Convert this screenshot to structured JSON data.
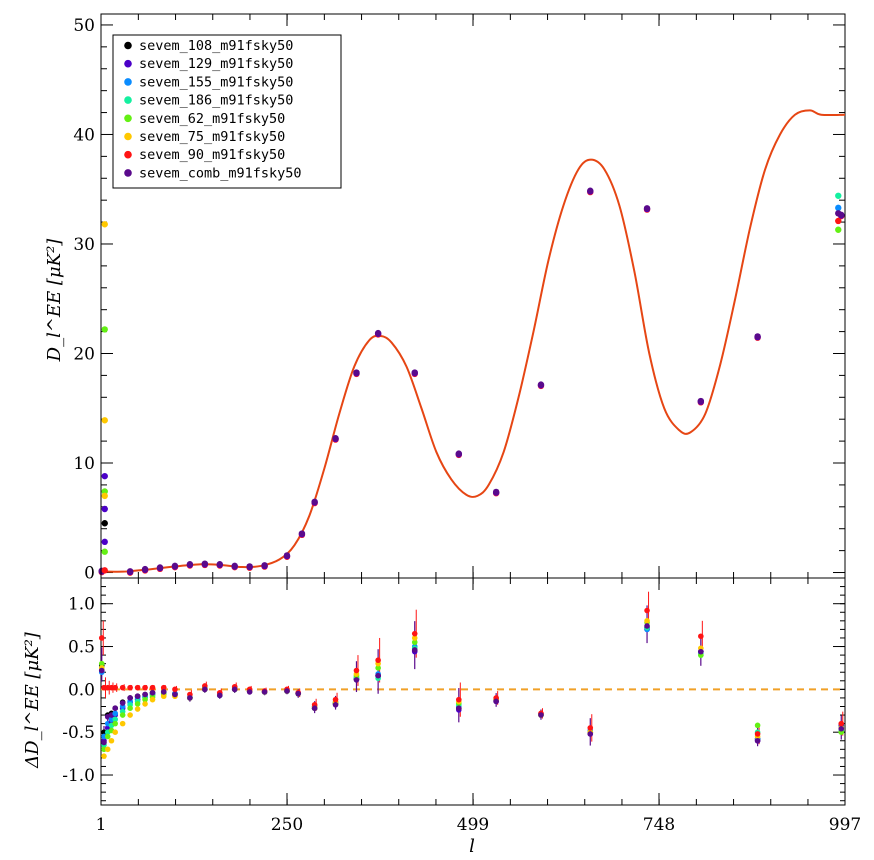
{
  "chart_data": [
    {
      "type": "scatter",
      "panel": "main",
      "xlabel": "l",
      "ylabel": "D_l^EE [μK²]",
      "xlim": [
        1,
        997
      ],
      "ylim": [
        -0.5,
        51
      ],
      "xticks": [
        "1",
        "250",
        "499",
        "748",
        "997"
      ],
      "yticks": [
        0,
        10,
        20,
        30,
        40,
        50
      ],
      "legend_position": "top-left",
      "series_colors": [
        "#000000",
        "#4b00c8",
        "#0a8cff",
        "#14f0a0",
        "#64f014",
        "#ffc800",
        "#ff1414",
        "#5a0a8c"
      ],
      "series_names": [
        "sevem_108_m91fsky50",
        "sevem_129_m91fsky50",
        "sevem_155_m91fsky50",
        "sevem_186_m91fsky50",
        "sevem_62_m91fsky50",
        "sevem_75_m91fsky50",
        "sevem_90_m91fsky50",
        "sevem_comb_m91fsky50"
      ],
      "model_color": "#e64614",
      "model_curve": [
        [
          2,
          0.1
        ],
        [
          30,
          0.08
        ],
        [
          60,
          0.25
        ],
        [
          100,
          0.55
        ],
        [
          135,
          0.75
        ],
        [
          160,
          0.7
        ],
        [
          190,
          0.5
        ],
        [
          215,
          0.6
        ],
        [
          240,
          1.2
        ],
        [
          260,
          2.5
        ],
        [
          280,
          5.2
        ],
        [
          300,
          9.5
        ],
        [
          320,
          14.5
        ],
        [
          340,
          18.8
        ],
        [
          360,
          21.2
        ],
        [
          375,
          21.6
        ],
        [
          390,
          21.0
        ],
        [
          410,
          18.8
        ],
        [
          430,
          15.0
        ],
        [
          450,
          11.0
        ],
        [
          470,
          8.5
        ],
        [
          490,
          7.1
        ],
        [
          505,
          7.0
        ],
        [
          520,
          8.0
        ],
        [
          540,
          11.0
        ],
        [
          560,
          16.0
        ],
        [
          580,
          22.0
        ],
        [
          600,
          28.5
        ],
        [
          620,
          33.5
        ],
        [
          640,
          36.8
        ],
        [
          657,
          37.7
        ],
        [
          675,
          36.8
        ],
        [
          695,
          33.5
        ],
        [
          715,
          27.5
        ],
        [
          735,
          20.0
        ],
        [
          755,
          15.0
        ],
        [
          775,
          13.0
        ],
        [
          790,
          12.8
        ],
        [
          810,
          14.5
        ],
        [
          830,
          19.0
        ],
        [
          850,
          25.0
        ],
        [
          870,
          31.5
        ],
        [
          890,
          36.8
        ],
        [
          910,
          40.0
        ],
        [
          930,
          41.8
        ],
        [
          950,
          42.2
        ],
        [
          965,
          41.8
        ],
        [
          997,
          41.8
        ]
      ],
      "binned_points": [
        [
          2,
          0.1
        ],
        [
          40,
          0.05
        ],
        [
          60,
          0.25
        ],
        [
          80,
          0.4
        ],
        [
          100,
          0.55
        ],
        [
          120,
          0.7
        ],
        [
          140,
          0.75
        ],
        [
          160,
          0.7
        ],
        [
          180,
          0.55
        ],
        [
          200,
          0.5
        ],
        [
          220,
          0.6
        ],
        [
          250,
          1.5
        ],
        [
          270,
          3.5
        ],
        [
          287,
          6.4
        ],
        [
          315,
          12.2
        ],
        [
          343,
          18.2
        ],
        [
          372,
          21.8
        ],
        [
          421,
          18.2
        ],
        [
          480,
          10.8
        ],
        [
          530,
          7.3
        ],
        [
          590,
          17.1
        ],
        [
          656,
          34.8
        ],
        [
          732,
          33.2
        ],
        [
          804,
          15.6
        ],
        [
          880,
          21.5
        ],
        [
          992,
          32.6
        ]
      ],
      "low_l_points": [
        {
          "series": 5,
          "l": 2,
          "y": 31.8
        },
        {
          "series": 4,
          "l": 2,
          "y": 22.2
        },
        {
          "series": 5,
          "l": 2,
          "y": 13.9
        },
        {
          "series": 1,
          "l": 2,
          "y": 8.8
        },
        {
          "series": 4,
          "l": 2,
          "y": 7.4
        },
        {
          "series": 5,
          "l": 2,
          "y": 7.0
        },
        {
          "series": 1,
          "l": 2,
          "y": 5.8
        },
        {
          "series": 0,
          "l": 2,
          "y": 4.5
        },
        {
          "series": 1,
          "l": 2,
          "y": 2.8
        },
        {
          "series": 4,
          "l": 2,
          "y": 1.9
        },
        {
          "series": 6,
          "l": 2,
          "y": 0.2
        },
        {
          "series": 3,
          "l": 992,
          "y": 34.4
        },
        {
          "series": 2,
          "l": 992,
          "y": 33.3
        },
        {
          "series": 7,
          "l": 992,
          "y": 32.8
        },
        {
          "series": 6,
          "l": 992,
          "y": 32.1
        },
        {
          "series": 4,
          "l": 992,
          "y": 31.3
        }
      ]
    },
    {
      "type": "scatter",
      "panel": "residual",
      "xlabel": "l",
      "ylabel": "ΔD_l^EE [μK²]",
      "xlim": [
        1,
        997
      ],
      "ylim": [
        -1.35,
        1.3
      ],
      "xticks": [
        "1",
        "250",
        "499",
        "748",
        "997"
      ],
      "yticks": [
        "-1.0",
        "-0.5",
        "0.0",
        "0.5",
        "1.0"
      ],
      "zero_line_color": "#f0a028",
      "points": [
        {
          "l": 2,
          "values": [
            0.28,
            0.22,
            0.2,
            0.25,
            0.3,
            0.25,
            0.6,
            0.22
          ],
          "err": 0.2
        },
        {
          "l": 5,
          "values": [
            -0.5,
            -0.6,
            -0.55,
            -0.65,
            -0.7,
            -0.78,
            0.02,
            -0.62
          ],
          "err": 0.12
        },
        {
          "l": 10,
          "values": [
            -0.3,
            -0.45,
            -0.4,
            -0.5,
            -0.55,
            -0.7,
            0.02,
            -0.32
          ],
          "err": 0.08
        },
        {
          "l": 15,
          "values": [
            -0.28,
            -0.38,
            -0.35,
            -0.42,
            -0.48,
            -0.6,
            0.02,
            -0.3
          ],
          "err": 0.06
        },
        {
          "l": 20,
          "values": [
            -0.22,
            -0.3,
            -0.28,
            -0.35,
            -0.4,
            -0.5,
            0.02,
            -0.22
          ],
          "err": 0.05
        },
        {
          "l": 30,
          "values": [
            -0.15,
            -0.22,
            -0.2,
            -0.26,
            -0.3,
            -0.4,
            0.02,
            -0.16
          ],
          "err": 0.04
        },
        {
          "l": 40,
          "values": [
            -0.1,
            -0.15,
            -0.14,
            -0.18,
            -0.22,
            -0.3,
            0.02,
            -0.1
          ],
          "err": 0.03
        },
        {
          "l": 50,
          "values": [
            -0.08,
            -0.12,
            -0.1,
            -0.14,
            -0.17,
            -0.23,
            0.02,
            -0.08
          ],
          "err": 0.03
        },
        {
          "l": 60,
          "values": [
            -0.06,
            -0.09,
            -0.08,
            -0.1,
            -0.12,
            -0.17,
            0.02,
            -0.06
          ],
          "err": 0.03
        },
        {
          "l": 70,
          "values": [
            -0.04,
            -0.06,
            -0.05,
            -0.07,
            -0.09,
            -0.12,
            0.02,
            -0.04
          ],
          "err": 0.03
        },
        {
          "l": 85,
          "values": [
            -0.03,
            -0.04,
            -0.04,
            -0.05,
            -0.06,
            -0.08,
            0.02,
            -0.03
          ],
          "err": 0.03
        },
        {
          "l": 100,
          "values": [
            -0.05,
            -0.06,
            -0.05,
            -0.07,
            -0.07,
            -0.08,
            0.0,
            -0.06
          ],
          "err": 0.04
        },
        {
          "l": 120,
          "values": [
            -0.1,
            -0.1,
            -0.09,
            -0.1,
            -0.1,
            -0.1,
            -0.06,
            -0.1
          ],
          "err": 0.05
        },
        {
          "l": 140,
          "values": [
            0.0,
            0.01,
            0.0,
            0.0,
            0.02,
            0.0,
            0.04,
            0.0
          ],
          "err": 0.05
        },
        {
          "l": 160,
          "values": [
            -0.06,
            -0.07,
            -0.06,
            -0.07,
            -0.06,
            -0.06,
            -0.04,
            -0.07
          ],
          "err": 0.05
        },
        {
          "l": 180,
          "values": [
            0.0,
            0.01,
            0.0,
            0.0,
            0.02,
            0.0,
            0.03,
            0.0
          ],
          "err": 0.05
        },
        {
          "l": 200,
          "values": [
            -0.02,
            -0.02,
            -0.02,
            -0.02,
            -0.02,
            -0.02,
            0.0,
            -0.03
          ],
          "err": 0.04
        },
        {
          "l": 220,
          "values": [
            -0.03,
            -0.03,
            -0.03,
            -0.03,
            -0.03,
            -0.03,
            -0.02,
            -0.03
          ],
          "err": 0.04
        },
        {
          "l": 250,
          "values": [
            -0.02,
            -0.02,
            -0.02,
            -0.02,
            -0.02,
            -0.02,
            0.0,
            -0.02
          ],
          "err": 0.04
        },
        {
          "l": 265,
          "values": [
            -0.05,
            -0.05,
            -0.05,
            -0.05,
            -0.05,
            -0.05,
            -0.04,
            -0.05
          ],
          "err": 0.05
        },
        {
          "l": 287,
          "values": [
            -0.22,
            -0.22,
            -0.2,
            -0.2,
            -0.22,
            -0.2,
            -0.18,
            -0.22
          ],
          "err": 0.07
        },
        {
          "l": 315,
          "values": [
            -0.16,
            -0.17,
            -0.15,
            -0.15,
            -0.17,
            -0.15,
            -0.12,
            -0.18
          ],
          "err": 0.08
        },
        {
          "l": 343,
          "values": [
            0.12,
            0.12,
            0.14,
            0.14,
            0.16,
            0.18,
            0.22,
            0.11
          ],
          "err": 0.18
        },
        {
          "l": 372,
          "values": [
            0.16,
            0.15,
            0.18,
            0.13,
            0.25,
            0.3,
            0.34,
            0.16
          ],
          "err": 0.26
        },
        {
          "l": 421,
          "values": [
            0.45,
            0.44,
            0.5,
            0.48,
            0.55,
            0.6,
            0.65,
            0.46
          ],
          "err": 0.28
        },
        {
          "l": 480,
          "values": [
            -0.22,
            -0.24,
            -0.2,
            -0.18,
            -0.16,
            -0.14,
            -0.12,
            -0.22
          ],
          "err": 0.2
        },
        {
          "l": 530,
          "values": [
            -0.13,
            -0.14,
            -0.12,
            -0.12,
            -0.12,
            -0.12,
            -0.1,
            -0.14
          ],
          "err": 0.08
        },
        {
          "l": 590,
          "values": [
            -0.29,
            -0.3,
            -0.29,
            -0.3,
            -0.3,
            -0.3,
            -0.28,
            -0.3
          ],
          "err": 0.06
        },
        {
          "l": 656,
          "values": [
            -0.5,
            -0.52,
            -0.48,
            -0.5,
            -0.5,
            -0.5,
            -0.45,
            -0.52
          ],
          "err": 0.16
        },
        {
          "l": 732,
          "values": [
            0.72,
            0.7,
            0.7,
            0.72,
            0.78,
            0.8,
            0.92,
            0.74
          ],
          "err": 0.22
        },
        {
          "l": 804,
          "values": [
            0.44,
            0.44,
            0.42,
            0.4,
            0.4,
            0.48,
            0.62,
            0.44
          ],
          "err": 0.18
        },
        {
          "l": 880,
          "values": [
            -0.58,
            -0.6,
            -0.58,
            -0.5,
            -0.42,
            -0.55,
            -0.52,
            -0.6
          ],
          "err": 0.12
        },
        {
          "l": 992,
          "values": [
            -0.42,
            -0.42,
            -0.44,
            -0.48,
            -0.5,
            -0.45,
            -0.4,
            -0.46
          ],
          "err": 0.14
        }
      ]
    }
  ]
}
